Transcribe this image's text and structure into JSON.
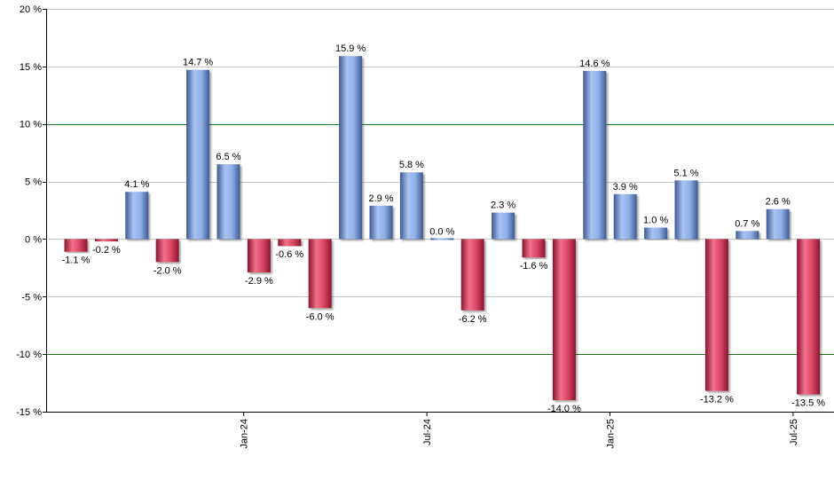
{
  "chart_data": {
    "type": "bar",
    "title": "",
    "xlabel": "",
    "ylabel": "",
    "ylim": [
      -15,
      20
    ],
    "y_ticks": [
      20,
      15,
      10,
      5,
      0,
      -5,
      -10,
      -15
    ],
    "y_tick_suffix": " %",
    "y_tick_labels": [
      "20 %",
      "15 %",
      "10 %",
      "5 %",
      "0 %",
      "-5 %",
      "-10 %",
      "-15 %"
    ],
    "x_tick_labels": [
      {
        "label": "Jan-24",
        "index": 5.5
      },
      {
        "label": "Jul-24",
        "index": 11.5
      },
      {
        "label": "Jan-25",
        "index": 17.5
      },
      {
        "label": "Jul-25",
        "index": 23.5
      }
    ],
    "values": [
      -1.1,
      -0.2,
      4.1,
      -2.0,
      14.7,
      6.5,
      -2.9,
      -0.6,
      -6.0,
      15.9,
      2.9,
      5.8,
      0.0,
      -6.2,
      2.3,
      -1.6,
      -14.0,
      14.6,
      3.9,
      1.0,
      5.1,
      -13.2,
      0.7,
      2.6,
      -13.5
    ],
    "data_labels": [
      "-1.1 %",
      "-0.2 %",
      "4.1 %",
      "-2.0 %",
      "14.7 %",
      "6.5 %",
      "-2.9 %",
      "-0.6 %",
      "-6.0 %",
      "15.9 %",
      "2.9 %",
      "5.8 %",
      "0.0 %",
      "-6.2 %",
      "2.3 %",
      "-1.6 %",
      "-14.0 %",
      "14.6 %",
      "3.9 %",
      "1.0 %",
      "5.1 %",
      "-13.2 %",
      "0.7 %",
      "2.6 %",
      "-13.5 %"
    ],
    "highlight_lines": [
      10,
      -10
    ],
    "grid": true,
    "legend": "none",
    "colors": {
      "positive": "#7f9fe0",
      "positive_dark": "#3f5d9a",
      "negative": "#d8405e",
      "negative_dark": "#8a1530",
      "highlight_line": "#1b7a1b",
      "grid": "#c8c8c8",
      "axis": "#000000"
    }
  }
}
